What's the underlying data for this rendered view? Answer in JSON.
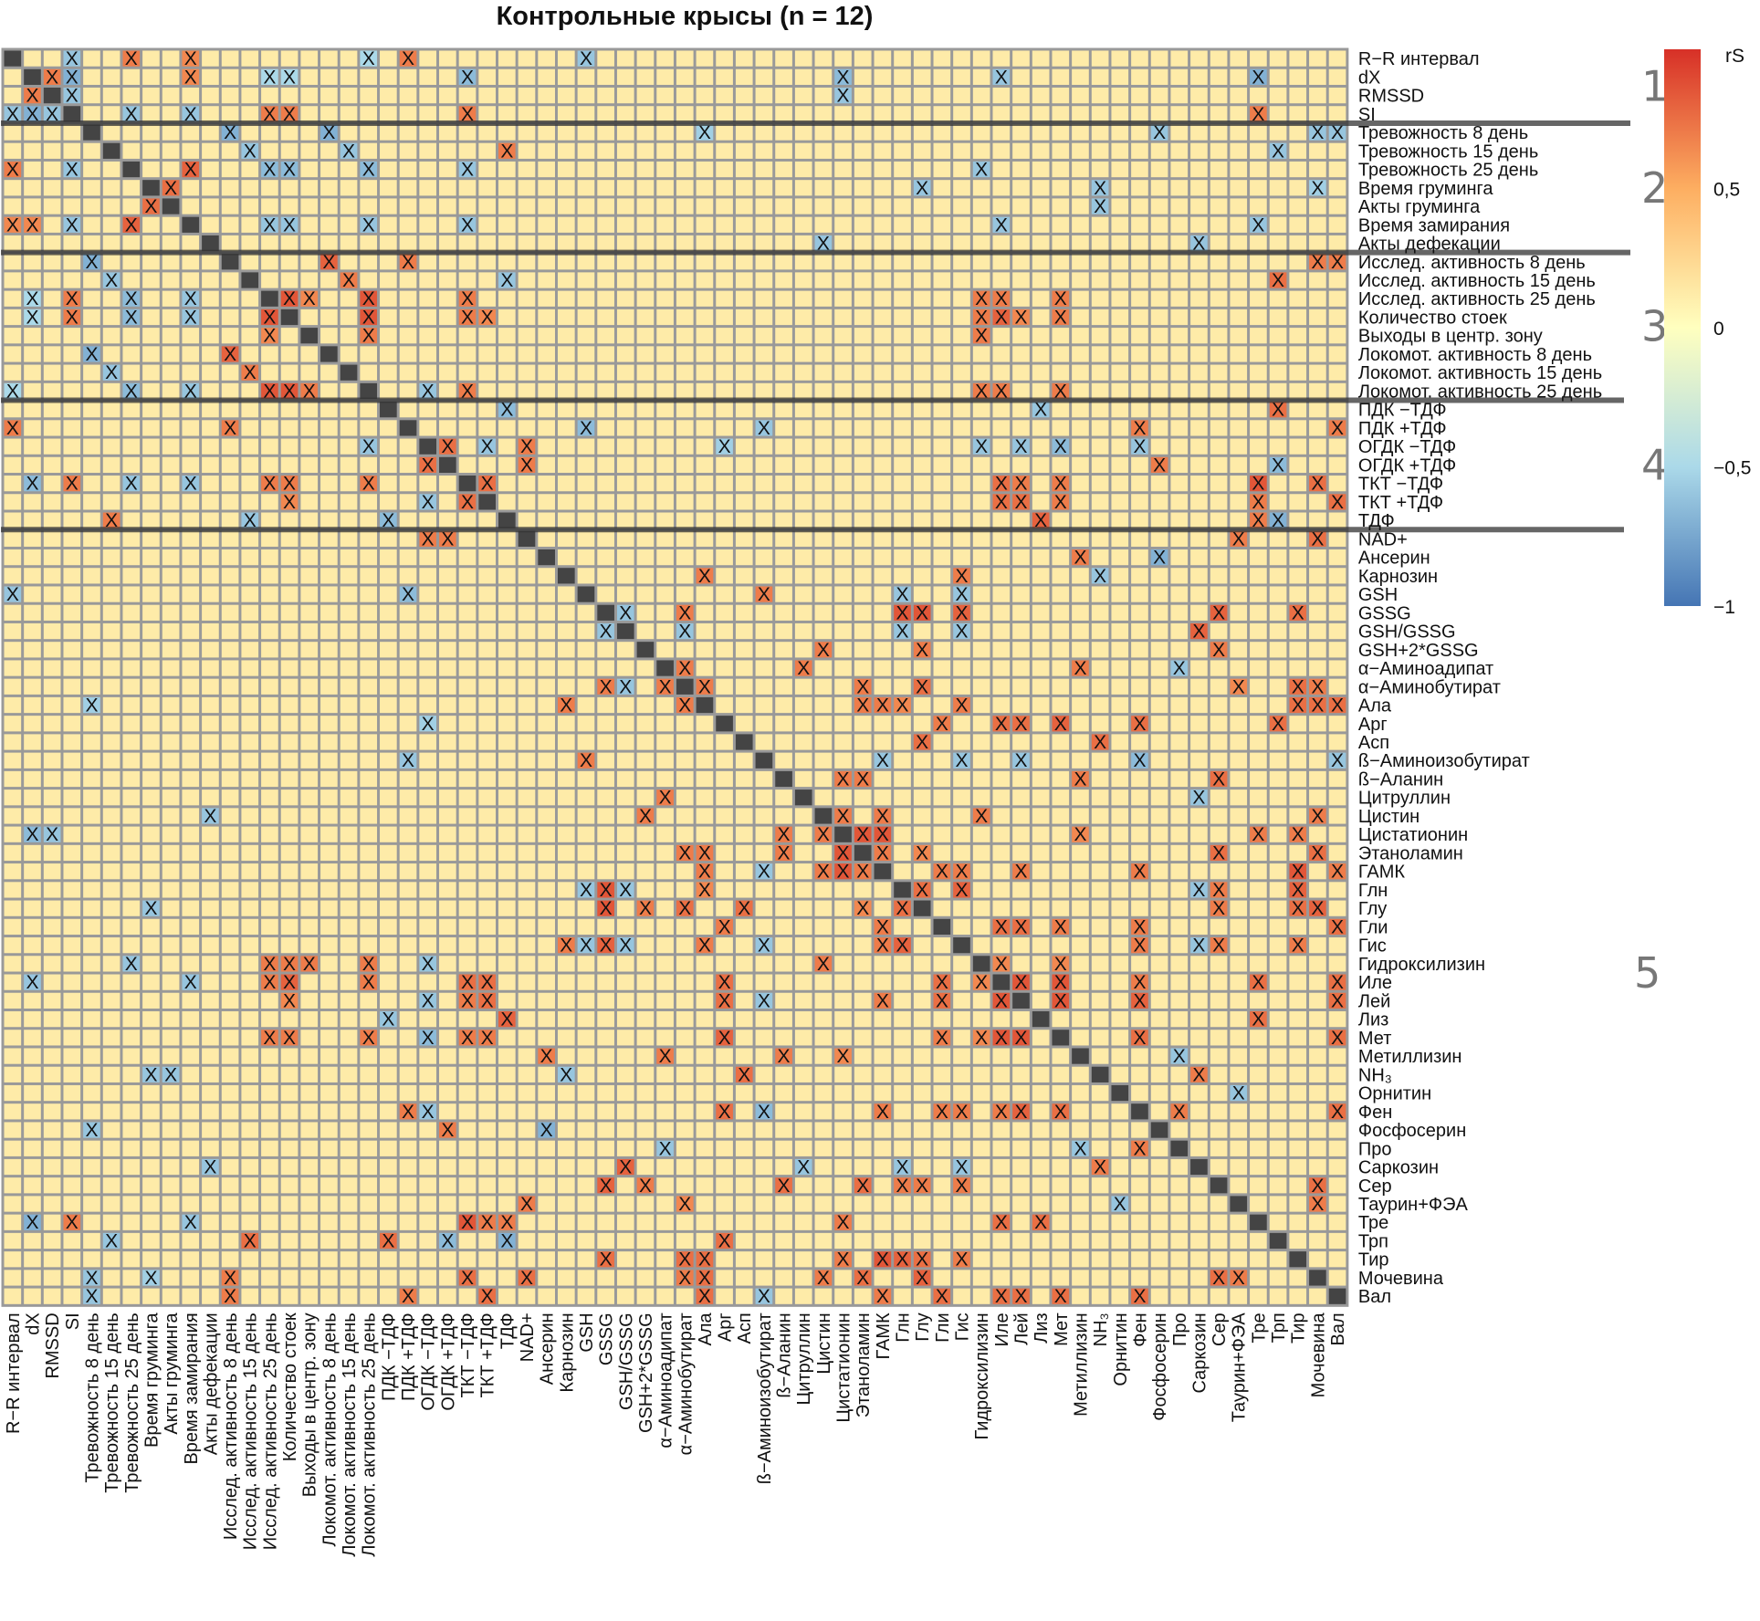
{
  "chart_data": {
    "type": "heatmap",
    "title": "Контрольные крысы (n = 12)",
    "variables": [
      "R−R интервал",
      "dX",
      "RMSSD",
      "SI",
      "Тревожность 8 день",
      "Тревожность 15 день",
      "Тревожность 25 день",
      "Время груминга",
      "Акты груминга",
      "Время замирания",
      "Акты дефекации",
      "Исслед. активность 8 день",
      "Исслед. активность 15 день",
      "Исслед. активность 25 день",
      "Количество стоек",
      "Выходы в центр. зону",
      "Локомот. активность 8 день",
      "Локомот. активность 15 день",
      "Локомот. активность 25 день",
      "ПДК −ТДФ",
      "ПДК +ТДФ",
      "ОГДК −ТДФ",
      "ОГДК +ТДФ",
      "ТКТ −ТДФ",
      "ТКТ +ТДФ",
      "ТДФ",
      "NAD+",
      "Ансерин",
      "Карнозин",
      "GSH",
      "GSSG",
      "GSH/GSSG",
      "GSH+2*GSSG",
      "α−Аминоадипат",
      "α−Аминобутират",
      "Ала",
      "Арг",
      "Асп",
      "ß−Аминоизобутират",
      "ß−Аланин",
      "Цитруллин",
      "Цистин",
      "Цистатионин",
      "Этаноламин",
      "ГАМК",
      "Глн",
      "Глу",
      "Гли",
      "Гис",
      "Гидроксилизин",
      "Иле",
      "Лей",
      "Лиз",
      "Мет",
      "Метиллизин",
      "NH₃",
      "Орнитин",
      "Фен",
      "Фосфосерин",
      "Про",
      "Саркозин",
      "Сер",
      "Таурин+ФЭА",
      "Тре",
      "Трп",
      "Тир",
      "Мочевина",
      "Вал"
    ],
    "symmetric": true,
    "diagonal_color": "#444444",
    "significance_mark": "X",
    "colorbar": {
      "label": "rS",
      "range": [
        -1,
        1
      ],
      "ticks": [
        {
          "value": 0.5,
          "label": "0,5"
        },
        {
          "value": 0,
          "label": "0"
        },
        {
          "value": -0.5,
          "label": "−0,5"
        },
        {
          "value": -1,
          "label": "−1"
        }
      ],
      "colors": {
        "-1": "#4575b4",
        "-0.5": "#abd9e9",
        "0": "#ffffbf",
        "0.5": "#fdae61",
        "1": "#d73027"
      }
    },
    "groups": [
      {
        "label": "1",
        "first": "R−R интервал",
        "last": "SI"
      },
      {
        "label": "2",
        "first": "Тревожность 8 день",
        "last": "Акты дефекации"
      },
      {
        "label": "3",
        "first": "Исслед. активность 8 день",
        "last": "Локомот. активность 25 день"
      },
      {
        "label": "4",
        "first": "ПДК −ТДФ",
        "last": "ТДФ"
      },
      {
        "label": "5",
        "first": "NAD+",
        "last": "Вал"
      }
    ],
    "significant_cells_lower_triangle": [
      [
        2,
        1,
        0.7
      ],
      [
        3,
        0,
        -0.6
      ],
      [
        3,
        1,
        -0.7
      ],
      [
        3,
        2,
        -0.6
      ],
      [
        6,
        0,
        0.7
      ],
      [
        6,
        3,
        -0.6
      ],
      [
        8,
        7,
        0.75
      ],
      [
        9,
        0,
        0.65
      ],
      [
        9,
        1,
        0.65
      ],
      [
        9,
        3,
        -0.6
      ],
      [
        9,
        6,
        0.8
      ],
      [
        11,
        4,
        -0.7
      ],
      [
        12,
        5,
        -0.6
      ],
      [
        13,
        1,
        -0.5
      ],
      [
        13,
        3,
        0.7
      ],
      [
        13,
        6,
        -0.65
      ],
      [
        13,
        9,
        -0.6
      ],
      [
        14,
        1,
        -0.5
      ],
      [
        14,
        3,
        0.7
      ],
      [
        14,
        6,
        -0.65
      ],
      [
        14,
        9,
        -0.6
      ],
      [
        14,
        13,
        0.85
      ],
      [
        15,
        13,
        0.65
      ],
      [
        16,
        4,
        -0.7
      ],
      [
        16,
        11,
        0.8
      ],
      [
        17,
        5,
        -0.6
      ],
      [
        17,
        12,
        0.7
      ],
      [
        18,
        0,
        -0.5
      ],
      [
        18,
        6,
        -0.65
      ],
      [
        18,
        9,
        -0.6
      ],
      [
        18,
        13,
        0.85
      ],
      [
        18,
        14,
        0.85
      ],
      [
        18,
        15,
        0.7
      ],
      [
        20,
        0,
        0.7
      ],
      [
        20,
        11,
        0.7
      ],
      [
        21,
        18,
        -0.6
      ],
      [
        22,
        21,
        0.75
      ],
      [
        23,
        1,
        -0.65
      ],
      [
        23,
        3,
        0.7
      ],
      [
        23,
        6,
        -0.6
      ],
      [
        23,
        9,
        -0.6
      ],
      [
        23,
        13,
        0.7
      ],
      [
        23,
        14,
        0.7
      ],
      [
        23,
        18,
        0.7
      ],
      [
        24,
        14,
        0.65
      ],
      [
        24,
        21,
        -0.6
      ],
      [
        24,
        23,
        0.75
      ],
      [
        25,
        5,
        0.7
      ],
      [
        25,
        12,
        -0.6
      ],
      [
        25,
        19,
        -0.65
      ],
      [
        26,
        21,
        0.7
      ],
      [
        26,
        22,
        0.7
      ],
      [
        29,
        0,
        -0.6
      ],
      [
        29,
        20,
        -0.65
      ],
      [
        31,
        30,
        -0.6
      ],
      [
        34,
        30,
        0.7
      ],
      [
        34,
        31,
        -0.6
      ],
      [
        34,
        33,
        0.7
      ],
      [
        35,
        4,
        -0.55
      ],
      [
        35,
        28,
        0.7
      ],
      [
        35,
        34,
        0.7
      ],
      [
        36,
        21,
        -0.55
      ],
      [
        38,
        20,
        -0.6
      ],
      [
        38,
        29,
        0.7
      ],
      [
        40,
        33,
        0.7
      ],
      [
        41,
        10,
        -0.6
      ],
      [
        41,
        32,
        0.7
      ],
      [
        42,
        1,
        -0.65
      ],
      [
        42,
        2,
        -0.6
      ],
      [
        42,
        39,
        0.7
      ],
      [
        42,
        41,
        0.7
      ],
      [
        43,
        34,
        0.7
      ],
      [
        43,
        35,
        0.7
      ],
      [
        43,
        39,
        0.7
      ],
      [
        43,
        42,
        0.85
      ],
      [
        44,
        35,
        0.7
      ],
      [
        44,
        38,
        -0.6
      ],
      [
        44,
        41,
        0.7
      ],
      [
        44,
        42,
        0.85
      ],
      [
        44,
        43,
        0.7
      ],
      [
        45,
        29,
        -0.6
      ],
      [
        45,
        30,
        0.85
      ],
      [
        45,
        31,
        -0.6
      ],
      [
        45,
        35,
        0.65
      ],
      [
        46,
        7,
        -0.6
      ],
      [
        46,
        30,
        0.85
      ],
      [
        46,
        32,
        0.7
      ],
      [
        46,
        34,
        0.75
      ],
      [
        46,
        37,
        0.75
      ],
      [
        46,
        43,
        0.65
      ],
      [
        46,
        45,
        0.75
      ],
      [
        47,
        36,
        0.7
      ],
      [
        47,
        44,
        0.7
      ],
      [
        48,
        28,
        0.7
      ],
      [
        48,
        29,
        -0.6
      ],
      [
        48,
        30,
        0.8
      ],
      [
        48,
        31,
        -0.6
      ],
      [
        48,
        35,
        0.7
      ],
      [
        48,
        38,
        -0.6
      ],
      [
        48,
        44,
        0.7
      ],
      [
        48,
        45,
        0.8
      ],
      [
        49,
        6,
        -0.6
      ],
      [
        49,
        13,
        0.7
      ],
      [
        49,
        14,
        0.7
      ],
      [
        49,
        15,
        0.7
      ],
      [
        49,
        18,
        0.7
      ],
      [
        49,
        21,
        -0.6
      ],
      [
        49,
        41,
        0.7
      ],
      [
        50,
        1,
        -0.6
      ],
      [
        50,
        9,
        -0.6
      ],
      [
        50,
        13,
        0.7
      ],
      [
        50,
        14,
        0.8
      ],
      [
        50,
        18,
        0.7
      ],
      [
        50,
        23,
        0.75
      ],
      [
        50,
        24,
        0.75
      ],
      [
        50,
        36,
        0.75
      ],
      [
        50,
        47,
        0.75
      ],
      [
        50,
        49,
        0.65
      ],
      [
        51,
        14,
        0.65
      ],
      [
        51,
        21,
        -0.6
      ],
      [
        51,
        23,
        0.7
      ],
      [
        51,
        24,
        0.75
      ],
      [
        51,
        36,
        0.75
      ],
      [
        51,
        38,
        -0.6
      ],
      [
        51,
        44,
        0.7
      ],
      [
        51,
        47,
        0.75
      ],
      [
        51,
        50,
        0.85
      ],
      [
        52,
        19,
        -0.6
      ],
      [
        52,
        25,
        0.8
      ],
      [
        53,
        13,
        0.7
      ],
      [
        53,
        14,
        0.7
      ],
      [
        53,
        18,
        0.7
      ],
      [
        53,
        21,
        -0.65
      ],
      [
        53,
        23,
        0.7
      ],
      [
        53,
        24,
        0.7
      ],
      [
        53,
        36,
        0.8
      ],
      [
        53,
        47,
        0.7
      ],
      [
        53,
        49,
        0.65
      ],
      [
        53,
        50,
        0.85
      ],
      [
        53,
        51,
        0.85
      ],
      [
        54,
        27,
        0.7
      ],
      [
        54,
        33,
        0.7
      ],
      [
        54,
        39,
        0.7
      ],
      [
        54,
        42,
        0.65
      ],
      [
        55,
        7,
        -0.6
      ],
      [
        55,
        8,
        -0.6
      ],
      [
        55,
        28,
        -0.6
      ],
      [
        55,
        37,
        0.75
      ],
      [
        57,
        20,
        0.7
      ],
      [
        57,
        21,
        -0.6
      ],
      [
        57,
        36,
        0.75
      ],
      [
        57,
        38,
        -0.65
      ],
      [
        57,
        44,
        0.7
      ],
      [
        57,
        47,
        0.7
      ],
      [
        57,
        48,
        0.7
      ],
      [
        57,
        50,
        0.7
      ],
      [
        57,
        51,
        0.8
      ],
      [
        57,
        53,
        0.75
      ],
      [
        58,
        4,
        -0.6
      ],
      [
        58,
        22,
        0.7
      ],
      [
        58,
        27,
        -0.7
      ],
      [
        59,
        33,
        -0.6
      ],
      [
        59,
        54,
        -0.6
      ],
      [
        59,
        57,
        0.7
      ],
      [
        60,
        10,
        -0.6
      ],
      [
        60,
        31,
        0.8
      ],
      [
        60,
        40,
        -0.6
      ],
      [
        60,
        45,
        -0.6
      ],
      [
        60,
        48,
        -0.6
      ],
      [
        60,
        55,
        0.7
      ],
      [
        61,
        30,
        0.8
      ],
      [
        61,
        32,
        0.7
      ],
      [
        61,
        39,
        0.75
      ],
      [
        61,
        43,
        0.75
      ],
      [
        61,
        45,
        0.7
      ],
      [
        61,
        46,
        0.7
      ],
      [
        61,
        48,
        0.7
      ],
      [
        62,
        26,
        0.7
      ],
      [
        62,
        34,
        0.65
      ],
      [
        62,
        56,
        -0.6
      ],
      [
        63,
        1,
        -0.7
      ],
      [
        63,
        3,
        0.7
      ],
      [
        63,
        9,
        -0.6
      ],
      [
        63,
        23,
        0.85
      ],
      [
        63,
        24,
        0.7
      ],
      [
        63,
        25,
        0.7
      ],
      [
        63,
        42,
        0.7
      ],
      [
        63,
        50,
        0.75
      ],
      [
        63,
        52,
        0.75
      ],
      [
        64,
        5,
        -0.6
      ],
      [
        64,
        12,
        0.75
      ],
      [
        64,
        19,
        0.75
      ],
      [
        64,
        22,
        -0.65
      ],
      [
        64,
        25,
        -0.7
      ],
      [
        64,
        36,
        0.75
      ],
      [
        65,
        30,
        0.75
      ],
      [
        65,
        34,
        0.75
      ],
      [
        65,
        35,
        0.75
      ],
      [
        65,
        42,
        0.7
      ],
      [
        65,
        44,
        0.85
      ],
      [
        65,
        45,
        0.8
      ],
      [
        65,
        46,
        0.75
      ],
      [
        65,
        48,
        0.7
      ],
      [
        66,
        4,
        -0.6
      ],
      [
        66,
        7,
        -0.55
      ],
      [
        66,
        11,
        0.7
      ],
      [
        66,
        23,
        0.75
      ],
      [
        66,
        26,
        0.75
      ],
      [
        66,
        34,
        0.7
      ],
      [
        66,
        35,
        0.75
      ],
      [
        66,
        41,
        0.7
      ],
      [
        66,
        43,
        0.75
      ],
      [
        66,
        46,
        0.8
      ],
      [
        66,
        61,
        0.75
      ],
      [
        66,
        62,
        0.7
      ],
      [
        67,
        4,
        -0.6
      ],
      [
        67,
        11,
        0.7
      ],
      [
        67,
        20,
        0.7
      ],
      [
        67,
        24,
        0.75
      ],
      [
        67,
        35,
        0.75
      ],
      [
        67,
        38,
        -0.6
      ],
      [
        67,
        44,
        0.7
      ],
      [
        67,
        47,
        0.75
      ],
      [
        67,
        50,
        0.75
      ],
      [
        67,
        51,
        0.75
      ],
      [
        67,
        53,
        0.75
      ],
      [
        67,
        57,
        0.75
      ]
    ]
  }
}
